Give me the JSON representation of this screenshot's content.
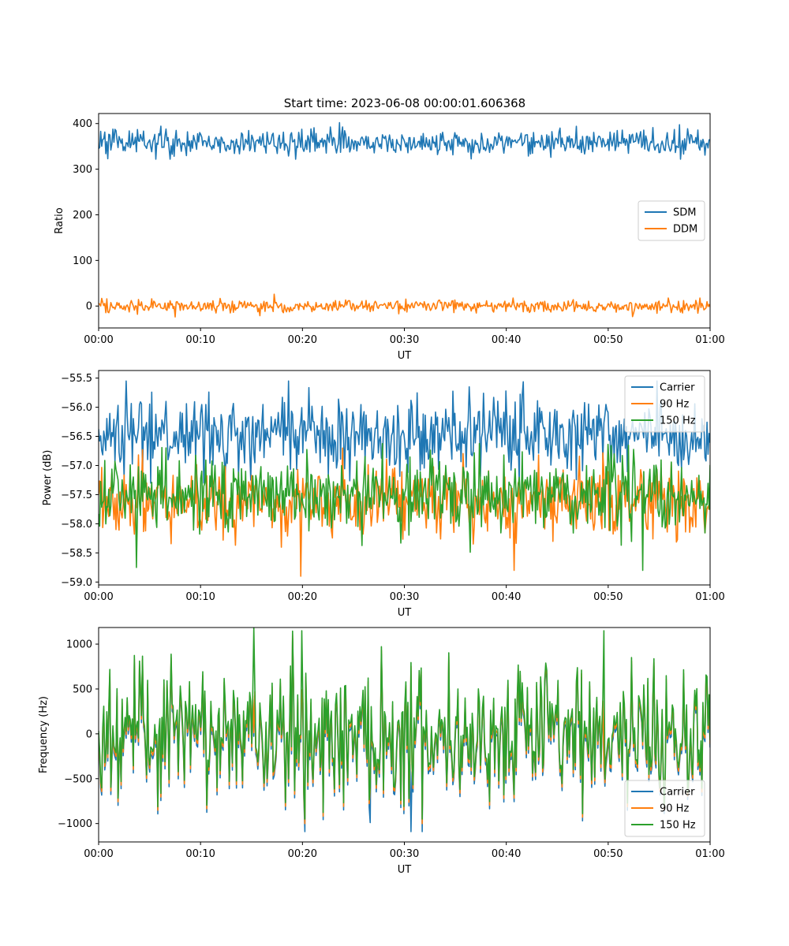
{
  "figure": {
    "title": "Start time: 2023-06-08 00:00:01.606368"
  },
  "chart_data": [
    {
      "type": "line",
      "title": "Start time: 2023-06-08 00:00:01.606368",
      "xlabel": "UT",
      "ylabel": "Ratio",
      "x_ticks": [
        "00:00",
        "00:10",
        "00:20",
        "00:30",
        "00:40",
        "00:50",
        "01:00"
      ],
      "xlim_minutes": [
        0,
        60
      ],
      "ylim": [
        -48,
        422
      ],
      "y_ticks": [
        0,
        100,
        200,
        300,
        400
      ],
      "y_tick_labels": [
        "0",
        "100",
        "200",
        "300",
        "400"
      ],
      "legend_position": "center-right",
      "grid": false,
      "series": [
        {
          "name": "SDM",
          "color": "#1f77b4",
          "mean": 358,
          "std": 14,
          "min": 322,
          "max": 402,
          "extremes": [
            [
              23.6,
              402
            ],
            [
              7.0,
              322
            ]
          ]
        },
        {
          "name": "DDM",
          "color": "#ff7f0e",
          "mean": 0,
          "std": 7,
          "min": -26,
          "max": 26,
          "extremes": [
            [
              17.2,
              26
            ],
            [
              7.5,
              -24
            ]
          ]
        }
      ]
    },
    {
      "type": "line",
      "title": "",
      "xlabel": "UT",
      "ylabel": "Power (dB)",
      "x_ticks": [
        "00:00",
        "00:10",
        "00:20",
        "00:30",
        "00:40",
        "00:50",
        "01:00"
      ],
      "xlim_minutes": [
        0,
        60
      ],
      "ylim": [
        -59.05,
        -55.37
      ],
      "y_ticks": [
        -59.0,
        -58.5,
        -58.0,
        -57.5,
        -57.0,
        -56.5,
        -56.0,
        -55.5
      ],
      "y_tick_labels": [
        "−59.0",
        "−58.5",
        "−58.0",
        "−57.5",
        "−57.0",
        "−56.5",
        "−56.0",
        "−55.5"
      ],
      "legend_position": "top-right",
      "grid": false,
      "series": [
        {
          "name": "Carrier",
          "color": "#1f77b4",
          "mean": -56.5,
          "std": 0.32,
          "min": -57.3,
          "max": -55.55,
          "extremes": [
            [
              18.6,
              -55.55
            ],
            [
              36.4,
              -55.65
            ]
          ]
        },
        {
          "name": "90 Hz",
          "color": "#ff7f0e",
          "mean": -57.6,
          "std": 0.3,
          "min": -58.9,
          "max": -56.7,
          "extremes": [
            [
              19.8,
              -58.9
            ],
            [
              40.8,
              -58.8
            ]
          ]
        },
        {
          "name": "150 Hz",
          "color": "#2ca02c",
          "mean": -57.5,
          "std": 0.33,
          "min": -58.8,
          "max": -56.4,
          "extremes": [
            [
              3.7,
              -58.75
            ],
            [
              53.4,
              -58.8
            ]
          ]
        }
      ]
    },
    {
      "type": "line",
      "title": "",
      "xlabel": "UT",
      "ylabel": "Frequency (Hz)",
      "x_ticks": [
        "00:00",
        "00:10",
        "00:20",
        "00:30",
        "00:40",
        "00:50",
        "01:00"
      ],
      "xlim_minutes": [
        0,
        60
      ],
      "ylim": [
        -1205,
        1185
      ],
      "y_ticks": [
        -1000,
        -500,
        0,
        500,
        1000
      ],
      "y_tick_labels": [
        "−1000",
        "−500",
        "0",
        "500",
        "1000"
      ],
      "legend_position": "bottom-right",
      "grid": false,
      "series": [
        {
          "name": "Carrier",
          "color": "#1f77b4",
          "mean": -60,
          "std": 380,
          "min": -1090,
          "max": 1150,
          "extremes": [
            [
              30.7,
              -1090
            ],
            [
              26.6,
              -990
            ]
          ]
        },
        {
          "name": "90 Hz",
          "color": "#ff7f0e",
          "mean": -20,
          "std": 380,
          "min": -1000,
          "max": 1150
        },
        {
          "name": "150 Hz",
          "color": "#2ca02c",
          "mean": 20,
          "std": 380,
          "min": -950,
          "max": 1180,
          "extremes": [
            [
              15.2,
              1180
            ],
            [
              19.9,
              1150
            ],
            [
              49.6,
              1150
            ]
          ]
        }
      ]
    }
  ]
}
